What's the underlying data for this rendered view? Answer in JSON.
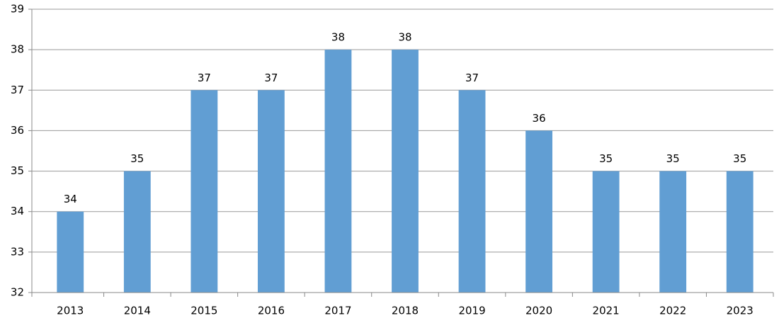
{
  "chart_data": {
    "type": "bar",
    "categories": [
      "2013",
      "2014",
      "2015",
      "2016",
      "2017",
      "2018",
      "2019",
      "2020",
      "2021",
      "2022",
      "2023"
    ],
    "values": [
      34,
      35,
      37,
      37,
      38,
      38,
      37,
      36,
      35,
      35,
      35
    ],
    "color": "#619ed3",
    "ylim": [
      32,
      39
    ],
    "yticks": [
      32,
      33,
      34,
      35,
      36,
      37,
      38,
      39
    ],
    "grid": true
  }
}
